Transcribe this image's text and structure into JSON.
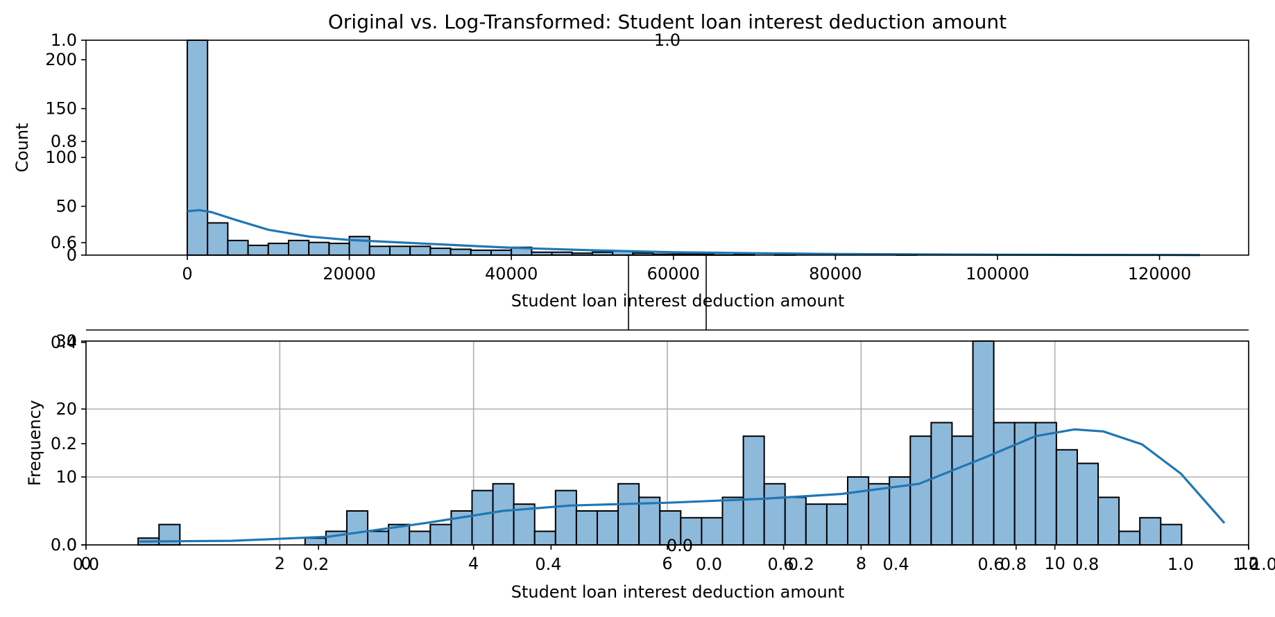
{
  "figure": {
    "title": "Original vs. Log-Transformed: Student loan interest deduction amount"
  },
  "colors": {
    "bar_fill": "#8db9db",
    "bar_edge": "#000000",
    "kde_line": "#1f77b4",
    "grid": "#b0b0b0"
  },
  "chart_data": [
    {
      "type": "bar",
      "subtype": "histogram-with-kde",
      "title": "",
      "xlabel": "Student loan interest deduction amount",
      "ylabel": "Count",
      "xlim": [
        -12500,
        131000
      ],
      "ylim": [
        0,
        220
      ],
      "xticks": [
        0,
        20000,
        40000,
        60000,
        80000,
        100000,
        120000
      ],
      "yticks": [
        0,
        50,
        100,
        150,
        200
      ],
      "grid": false,
      "bin_width": 2500,
      "bin_starts": [
        0,
        2500,
        5000,
        7500,
        10000,
        12500,
        15000,
        17500,
        20000,
        22500,
        25000,
        27500,
        30000,
        32500,
        35000,
        37500,
        40000,
        42500,
        45000,
        47500,
        50000,
        52500,
        55000,
        57500,
        60000,
        62500,
        65000,
        67500,
        70000,
        72500,
        75000,
        77500,
        80000,
        82500,
        85000,
        87500,
        90000,
        92500,
        95000,
        97500,
        100000,
        102500,
        105000,
        107500,
        110000,
        112500,
        115000,
        117500,
        120000,
        122500
      ],
      "values": [
        220,
        33,
        15,
        10,
        12,
        15,
        13,
        12,
        19,
        9,
        9,
        9,
        7,
        6,
        5,
        5,
        8,
        3,
        3,
        2,
        3,
        4,
        2,
        1,
        1,
        1,
        2,
        1,
        0,
        1,
        0,
        0,
        0,
        0,
        0,
        1,
        0,
        0,
        0,
        0,
        0,
        0,
        0,
        0,
        0,
        0,
        0,
        0,
        0,
        0
      ],
      "kde": {
        "x": [
          0,
          1500,
          3000,
          6000,
          10000,
          15000,
          20000,
          25000,
          30000,
          35000,
          40000,
          50000,
          60000,
          70000,
          80000,
          90000,
          100000,
          110000,
          120000,
          125000
        ],
        "y": [
          45,
          46,
          44,
          36,
          26,
          19,
          15.5,
          13.5,
          11.5,
          9.5,
          7.5,
          5,
          3,
          2,
          1.2,
          0.8,
          0.5,
          0.3,
          0.2,
          0.1
        ]
      }
    },
    {
      "type": "bar",
      "subtype": "histogram-with-kde",
      "title": "",
      "xlabel": "Student loan interest deduction amount",
      "ylabel": "Frequency",
      "xlim": [
        0,
        12
      ],
      "ylim": [
        0,
        30
      ],
      "xticks": [
        0,
        2,
        4,
        6,
        8,
        10,
        12
      ],
      "yticks": [
        0,
        10,
        20,
        30
      ],
      "grid": true,
      "bin_width": 0.2154,
      "bin_start": 0.538,
      "values": [
        1,
        3,
        0,
        0,
        0,
        0,
        0,
        0,
        1,
        2,
        5,
        2,
        3,
        2,
        3,
        5,
        8,
        9,
        6,
        2,
        8,
        5,
        5,
        9,
        7,
        5,
        4,
        4,
        7,
        16,
        9,
        7,
        6,
        6,
        10,
        9,
        10,
        16,
        18,
        16,
        30,
        18,
        18,
        18,
        14,
        12,
        7,
        2,
        4,
        3
      ],
      "kde": {
        "x": [
          0.55,
          1.5,
          2.5,
          3.5,
          4.3,
          5.0,
          6.0,
          7.0,
          7.8,
          8.6,
          9.3,
          9.8,
          10.2,
          10.5,
          10.9,
          11.3,
          11.75
        ],
        "y": [
          0.5,
          0.6,
          1.2,
          3.2,
          5.0,
          5.8,
          6.2,
          6.8,
          7.5,
          9.0,
          13.0,
          16.0,
          17.0,
          16.7,
          14.8,
          10.5,
          3.2
        ]
      }
    },
    {
      "type": "overlay-axis-ticks",
      "note": "Default 0-1 axis tick labels that are visibly rendered on top of the two panels",
      "top_panel_yticks": [
        "0.6",
        "0.8",
        "1.0"
      ],
      "bottom_panel_yticks": [
        "0.0",
        "0.2",
        "0.4"
      ],
      "bottom_panel_xticks_a": [
        "0.2",
        "0.4",
        "0.6",
        "0.8",
        "1.0"
      ],
      "bottom_panel_xticks_b": [
        "0.0",
        "0.2",
        "0.4",
        "0.6",
        "0.8",
        "1.0"
      ],
      "misc_labels": [
        "1.0",
        "0.0",
        "0.0",
        "0.0",
        "1.0"
      ]
    }
  ]
}
